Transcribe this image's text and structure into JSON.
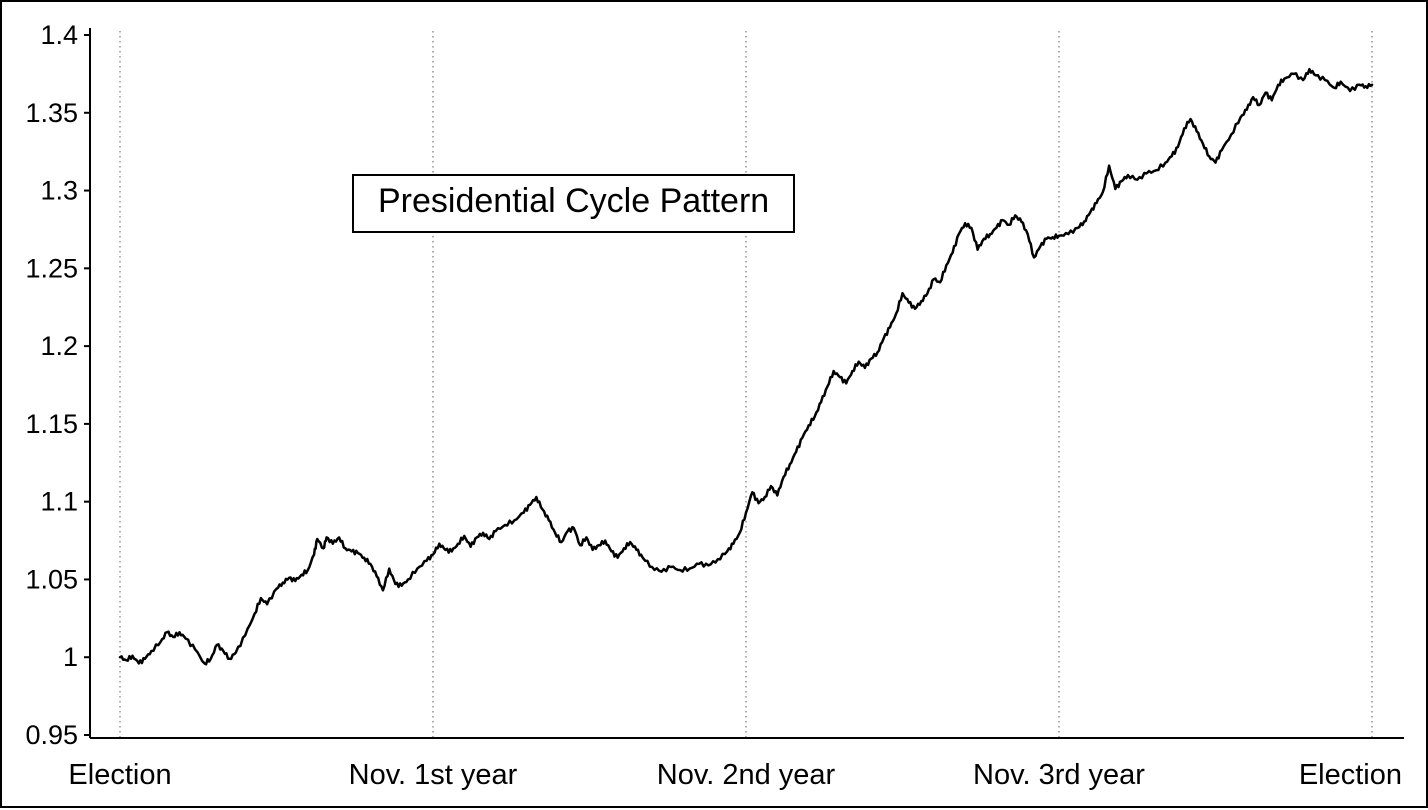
{
  "page": {
    "background": "#ffffff",
    "border_color": "#000000"
  },
  "chart_data": {
    "type": "line",
    "title": "Presidential Cycle Pattern",
    "xlabel": "",
    "ylabel": "",
    "xlim": [
      0,
      4
    ],
    "ylim": [
      0.95,
      1.4
    ],
    "grid": "vertical-dotted",
    "grid_color": "#777777",
    "legend": "none",
    "line_color": "#000000",
    "axis_color": "#000000",
    "x_tick_labels": [
      "Election",
      "Nov. 1st year",
      "Nov. 2nd year",
      "Nov. 3rd year",
      "Election"
    ],
    "y_ticks": [
      0.95,
      1,
      1.05,
      1.1,
      1.15,
      1.2,
      1.25,
      1.3,
      1.35,
      1.4
    ],
    "y_tick_labels": [
      "0.95",
      "1",
      "1.05",
      "1.1",
      "1.15",
      "1.2",
      "1.25",
      "1.3",
      "1.35",
      "1.4"
    ],
    "series": [
      {
        "name": "Presidential Cycle Pattern",
        "points": [
          [
            0.0,
            1.0
          ],
          [
            0.02,
            0.998
          ],
          [
            0.04,
            1.001
          ],
          [
            0.06,
            0.996
          ],
          [
            0.08,
            0.999
          ],
          [
            0.1,
            1.004
          ],
          [
            0.13,
            1.01
          ],
          [
            0.15,
            1.016
          ],
          [
            0.17,
            1.013
          ],
          [
            0.19,
            1.016
          ],
          [
            0.21,
            1.012
          ],
          [
            0.24,
            1.005
          ],
          [
            0.27,
            0.996
          ],
          [
            0.29,
            0.999
          ],
          [
            0.31,
            1.008
          ],
          [
            0.33,
            1.004
          ],
          [
            0.35,
            0.999
          ],
          [
            0.37,
            1.003
          ],
          [
            0.4,
            1.014
          ],
          [
            0.43,
            1.028
          ],
          [
            0.45,
            1.038
          ],
          [
            0.47,
            1.034
          ],
          [
            0.5,
            1.044
          ],
          [
            0.52,
            1.048
          ],
          [
            0.54,
            1.051
          ],
          [
            0.56,
            1.049
          ],
          [
            0.58,
            1.053
          ],
          [
            0.6,
            1.056
          ],
          [
            0.62,
            1.066
          ],
          [
            0.63,
            1.076
          ],
          [
            0.65,
            1.07
          ],
          [
            0.66,
            1.077
          ],
          [
            0.68,
            1.073
          ],
          [
            0.7,
            1.077
          ],
          [
            0.72,
            1.07
          ],
          [
            0.74,
            1.068
          ],
          [
            0.76,
            1.067
          ],
          [
            0.78,
            1.064
          ],
          [
            0.8,
            1.06
          ],
          [
            0.82,
            1.052
          ],
          [
            0.84,
            1.043
          ],
          [
            0.86,
            1.057
          ],
          [
            0.88,
            1.047
          ],
          [
            0.9,
            1.046
          ],
          [
            0.92,
            1.05
          ],
          [
            0.95,
            1.057
          ],
          [
            0.98,
            1.062
          ],
          [
            1.0,
            1.066
          ],
          [
            1.02,
            1.073
          ],
          [
            1.04,
            1.069
          ],
          [
            1.06,
            1.068
          ],
          [
            1.08,
            1.073
          ],
          [
            1.1,
            1.078
          ],
          [
            1.12,
            1.071
          ],
          [
            1.14,
            1.077
          ],
          [
            1.16,
            1.08
          ],
          [
            1.18,
            1.076
          ],
          [
            1.2,
            1.081
          ],
          [
            1.23,
            1.085
          ],
          [
            1.26,
            1.088
          ],
          [
            1.29,
            1.093
          ],
          [
            1.31,
            1.098
          ],
          [
            1.33,
            1.103
          ],
          [
            1.35,
            1.095
          ],
          [
            1.37,
            1.088
          ],
          [
            1.39,
            1.08
          ],
          [
            1.41,
            1.074
          ],
          [
            1.43,
            1.081
          ],
          [
            1.45,
            1.083
          ],
          [
            1.47,
            1.072
          ],
          [
            1.49,
            1.077
          ],
          [
            1.51,
            1.069
          ],
          [
            1.53,
            1.072
          ],
          [
            1.55,
            1.075
          ],
          [
            1.57,
            1.068
          ],
          [
            1.59,
            1.064
          ],
          [
            1.61,
            1.07
          ],
          [
            1.63,
            1.074
          ],
          [
            1.65,
            1.069
          ],
          [
            1.67,
            1.064
          ],
          [
            1.7,
            1.058
          ],
          [
            1.73,
            1.055
          ],
          [
            1.76,
            1.058
          ],
          [
            1.79,
            1.056
          ],
          [
            1.82,
            1.057
          ],
          [
            1.85,
            1.06
          ],
          [
            1.88,
            1.059
          ],
          [
            1.91,
            1.063
          ],
          [
            1.94,
            1.068
          ],
          [
            1.96,
            1.073
          ],
          [
            1.98,
            1.08
          ],
          [
            2.0,
            1.093
          ],
          [
            2.02,
            1.106
          ],
          [
            2.04,
            1.099
          ],
          [
            2.06,
            1.103
          ],
          [
            2.08,
            1.11
          ],
          [
            2.1,
            1.104
          ],
          [
            2.12,
            1.116
          ],
          [
            2.14,
            1.124
          ],
          [
            2.16,
            1.132
          ],
          [
            2.18,
            1.141
          ],
          [
            2.2,
            1.149
          ],
          [
            2.22,
            1.155
          ],
          [
            2.24,
            1.164
          ],
          [
            2.26,
            1.174
          ],
          [
            2.28,
            1.184
          ],
          [
            2.3,
            1.18
          ],
          [
            2.32,
            1.176
          ],
          [
            2.34,
            1.184
          ],
          [
            2.36,
            1.19
          ],
          [
            2.38,
            1.186
          ],
          [
            2.4,
            1.192
          ],
          [
            2.42,
            1.196
          ],
          [
            2.44,
            1.205
          ],
          [
            2.46,
            1.212
          ],
          [
            2.48,
            1.221
          ],
          [
            2.5,
            1.234
          ],
          [
            2.52,
            1.228
          ],
          [
            2.54,
            1.224
          ],
          [
            2.56,
            1.229
          ],
          [
            2.58,
            1.234
          ],
          [
            2.6,
            1.243
          ],
          [
            2.62,
            1.241
          ],
          [
            2.64,
            1.252
          ],
          [
            2.66,
            1.26
          ],
          [
            2.68,
            1.272
          ],
          [
            2.7,
            1.279
          ],
          [
            2.72,
            1.276
          ],
          [
            2.74,
            1.262
          ],
          [
            2.76,
            1.269
          ],
          [
            2.78,
            1.272
          ],
          [
            2.8,
            1.276
          ],
          [
            2.82,
            1.281
          ],
          [
            2.84,
            1.278
          ],
          [
            2.86,
            1.284
          ],
          [
            2.88,
            1.28
          ],
          [
            2.9,
            1.272
          ],
          [
            2.92,
            1.257
          ],
          [
            2.94,
            1.264
          ],
          [
            2.96,
            1.269
          ],
          [
            2.98,
            1.27
          ],
          [
            3.0,
            1.271
          ],
          [
            3.03,
            1.272
          ],
          [
            3.06,
            1.276
          ],
          [
            3.08,
            1.28
          ],
          [
            3.1,
            1.286
          ],
          [
            3.12,
            1.292
          ],
          [
            3.14,
            1.299
          ],
          [
            3.16,
            1.316
          ],
          [
            3.18,
            1.301
          ],
          [
            3.2,
            1.306
          ],
          [
            3.22,
            1.31
          ],
          [
            3.25,
            1.307
          ],
          [
            3.28,
            1.311
          ],
          [
            3.31,
            1.313
          ],
          [
            3.34,
            1.318
          ],
          [
            3.36,
            1.322
          ],
          [
            3.38,
            1.328
          ],
          [
            3.4,
            1.34
          ],
          [
            3.42,
            1.346
          ],
          [
            3.44,
            1.338
          ],
          [
            3.46,
            1.33
          ],
          [
            3.48,
            1.322
          ],
          [
            3.5,
            1.318
          ],
          [
            3.52,
            1.326
          ],
          [
            3.55,
            1.336
          ],
          [
            3.58,
            1.347
          ],
          [
            3.6,
            1.352
          ],
          [
            3.62,
            1.36
          ],
          [
            3.64,
            1.355
          ],
          [
            3.66,
            1.363
          ],
          [
            3.68,
            1.358
          ],
          [
            3.7,
            1.368
          ],
          [
            3.72,
            1.372
          ],
          [
            3.75,
            1.375
          ],
          [
            3.78,
            1.371
          ],
          [
            3.8,
            1.378
          ],
          [
            3.82,
            1.374
          ],
          [
            3.85,
            1.371
          ],
          [
            3.88,
            1.366
          ],
          [
            3.9,
            1.37
          ],
          [
            3.93,
            1.364
          ],
          [
            3.96,
            1.368
          ],
          [
            3.98,
            1.367
          ],
          [
            4.0,
            1.368
          ]
        ]
      }
    ]
  }
}
